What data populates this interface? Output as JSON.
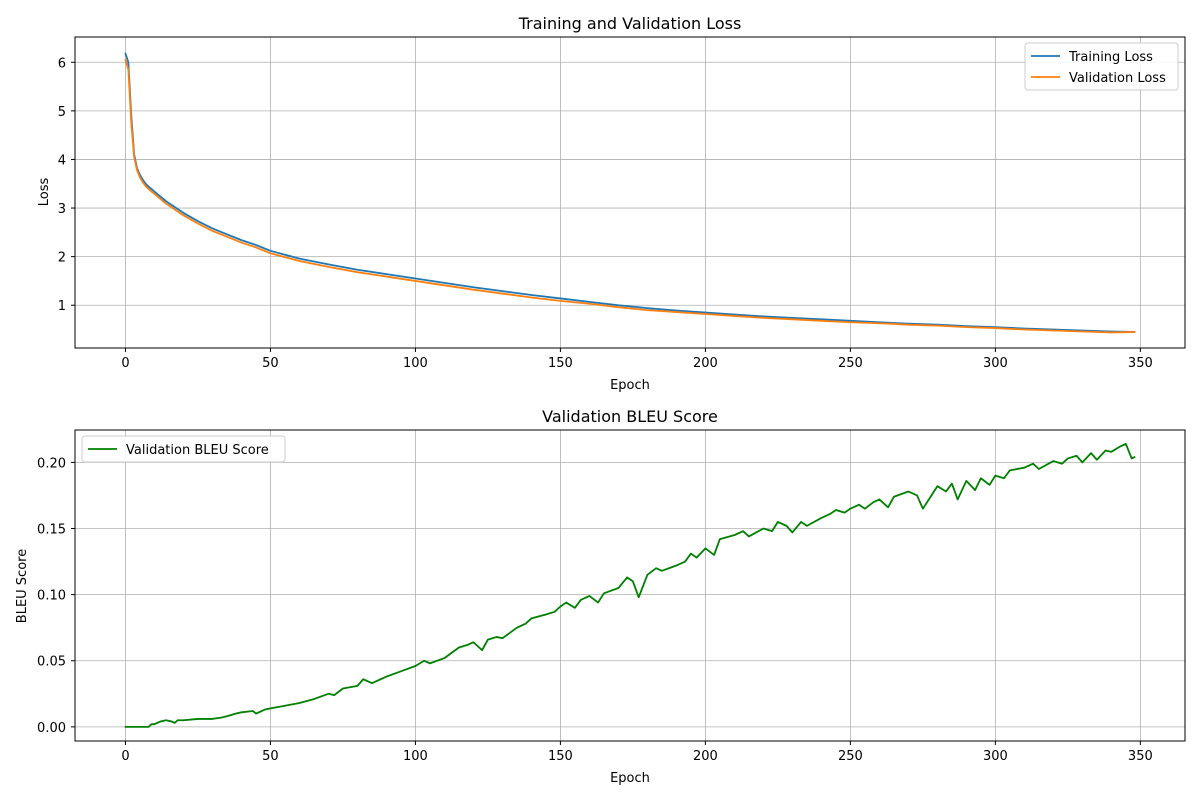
{
  "chart_data": [
    {
      "type": "line",
      "title": "Training and Validation Loss",
      "xlabel": "Epoch",
      "ylabel": "Loss",
      "xlim": [
        -17.4,
        365.4
      ],
      "ylim": [
        0.12,
        6.52
      ],
      "xticks": [
        0,
        50,
        100,
        150,
        200,
        250,
        300,
        350
      ],
      "yticks": [
        1,
        2,
        3,
        4,
        5,
        6
      ],
      "grid": true,
      "legend_position": "upper right",
      "series": [
        {
          "name": "Training Loss",
          "color": "#1f77b4",
          "x": [
            0,
            1,
            2,
            3,
            4,
            5,
            6,
            7,
            8,
            9,
            10,
            12,
            14,
            16,
            18,
            20,
            25,
            30,
            35,
            40,
            45,
            50,
            55,
            60,
            70,
            80,
            90,
            100,
            110,
            120,
            130,
            140,
            150,
            160,
            170,
            180,
            190,
            200,
            210,
            220,
            230,
            240,
            250,
            260,
            270,
            280,
            290,
            300,
            310,
            320,
            330,
            340,
            348
          ],
          "y": [
            6.18,
            6.0,
            4.9,
            4.1,
            3.82,
            3.68,
            3.58,
            3.5,
            3.44,
            3.39,
            3.34,
            3.24,
            3.14,
            3.06,
            2.98,
            2.9,
            2.73,
            2.58,
            2.46,
            2.34,
            2.24,
            2.12,
            2.04,
            1.96,
            1.84,
            1.73,
            1.64,
            1.55,
            1.46,
            1.37,
            1.29,
            1.21,
            1.14,
            1.07,
            1.0,
            0.94,
            0.89,
            0.85,
            0.81,
            0.77,
            0.74,
            0.71,
            0.68,
            0.65,
            0.62,
            0.6,
            0.57,
            0.55,
            0.52,
            0.5,
            0.48,
            0.46,
            0.45
          ]
        },
        {
          "name": "Validation Loss",
          "color": "#ff7f0e",
          "x": [
            0,
            1,
            2,
            3,
            4,
            5,
            6,
            7,
            8,
            9,
            10,
            12,
            14,
            16,
            18,
            20,
            25,
            30,
            35,
            40,
            45,
            50,
            55,
            60,
            70,
            80,
            90,
            100,
            110,
            120,
            130,
            140,
            150,
            160,
            170,
            180,
            190,
            200,
            210,
            220,
            230,
            240,
            250,
            260,
            270,
            280,
            290,
            300,
            310,
            320,
            330,
            340,
            348
          ],
          "y": [
            6.05,
            5.85,
            4.75,
            4.05,
            3.78,
            3.63,
            3.53,
            3.45,
            3.39,
            3.34,
            3.29,
            3.19,
            3.09,
            3.01,
            2.93,
            2.85,
            2.68,
            2.53,
            2.41,
            2.29,
            2.19,
            2.07,
            1.99,
            1.91,
            1.79,
            1.68,
            1.59,
            1.5,
            1.41,
            1.32,
            1.24,
            1.16,
            1.09,
            1.03,
            0.96,
            0.9,
            0.86,
            0.82,
            0.78,
            0.74,
            0.71,
            0.68,
            0.65,
            0.63,
            0.6,
            0.58,
            0.55,
            0.53,
            0.5,
            0.48,
            0.46,
            0.44,
            0.45
          ]
        }
      ]
    },
    {
      "type": "line",
      "title": "Validation BLEU Score",
      "xlabel": "Epoch",
      "ylabel": "BLEU Score",
      "xlim": [
        -17.4,
        365.4
      ],
      "ylim": [
        -0.0107,
        0.2245
      ],
      "xticks": [
        0,
        50,
        100,
        150,
        200,
        250,
        300,
        350
      ],
      "yticks": [
        0.0,
        0.05,
        0.1,
        0.15,
        0.2
      ],
      "ytick_labels": [
        "0.00",
        "0.05",
        "0.10",
        "0.15",
        "0.20"
      ],
      "grid": true,
      "legend_position": "upper left",
      "series": [
        {
          "name": "Validation BLEU Score",
          "color": "#008000",
          "x": [
            0,
            8,
            9,
            10,
            12,
            14,
            16,
            17,
            18,
            20,
            25,
            30,
            33,
            35,
            38,
            40,
            44,
            45,
            48,
            50,
            55,
            60,
            65,
            70,
            72,
            75,
            80,
            82,
            85,
            90,
            95,
            100,
            103,
            105,
            110,
            115,
            118,
            120,
            123,
            125,
            128,
            130,
            135,
            138,
            140,
            145,
            148,
            150,
            152,
            155,
            157,
            160,
            163,
            165,
            170,
            173,
            175,
            177,
            180,
            183,
            185,
            190,
            193,
            195,
            197,
            200,
            203,
            205,
            210,
            213,
            215,
            220,
            223,
            225,
            228,
            230,
            233,
            235,
            240,
            243,
            245,
            248,
            250,
            253,
            255,
            258,
            260,
            263,
            265,
            270,
            273,
            275,
            280,
            283,
            285,
            287,
            290,
            293,
            295,
            298,
            300,
            303,
            305,
            310,
            313,
            315,
            320,
            323,
            325,
            328,
            330,
            333,
            335,
            338,
            340,
            343,
            345,
            347,
            348
          ],
          "y": [
            0.0,
            0.0,
            0.002,
            0.002,
            0.004,
            0.005,
            0.004,
            0.003,
            0.005,
            0.005,
            0.006,
            0.006,
            0.007,
            0.008,
            0.01,
            0.011,
            0.012,
            0.01,
            0.013,
            0.014,
            0.016,
            0.018,
            0.021,
            0.025,
            0.024,
            0.029,
            0.031,
            0.036,
            0.033,
            0.038,
            0.042,
            0.046,
            0.05,
            0.048,
            0.052,
            0.06,
            0.062,
            0.064,
            0.058,
            0.066,
            0.068,
            0.067,
            0.075,
            0.078,
            0.082,
            0.085,
            0.087,
            0.091,
            0.094,
            0.09,
            0.096,
            0.099,
            0.094,
            0.101,
            0.105,
            0.113,
            0.11,
            0.098,
            0.115,
            0.12,
            0.118,
            0.122,
            0.125,
            0.131,
            0.128,
            0.135,
            0.13,
            0.142,
            0.145,
            0.148,
            0.144,
            0.15,
            0.148,
            0.155,
            0.152,
            0.147,
            0.155,
            0.152,
            0.158,
            0.161,
            0.164,
            0.162,
            0.165,
            0.168,
            0.165,
            0.17,
            0.172,
            0.166,
            0.174,
            0.178,
            0.175,
            0.165,
            0.182,
            0.178,
            0.184,
            0.172,
            0.186,
            0.179,
            0.188,
            0.183,
            0.19,
            0.188,
            0.194,
            0.196,
            0.199,
            0.195,
            0.201,
            0.199,
            0.203,
            0.205,
            0.2,
            0.207,
            0.202,
            0.209,
            0.208,
            0.212,
            0.214,
            0.203,
            0.204
          ]
        }
      ]
    }
  ]
}
